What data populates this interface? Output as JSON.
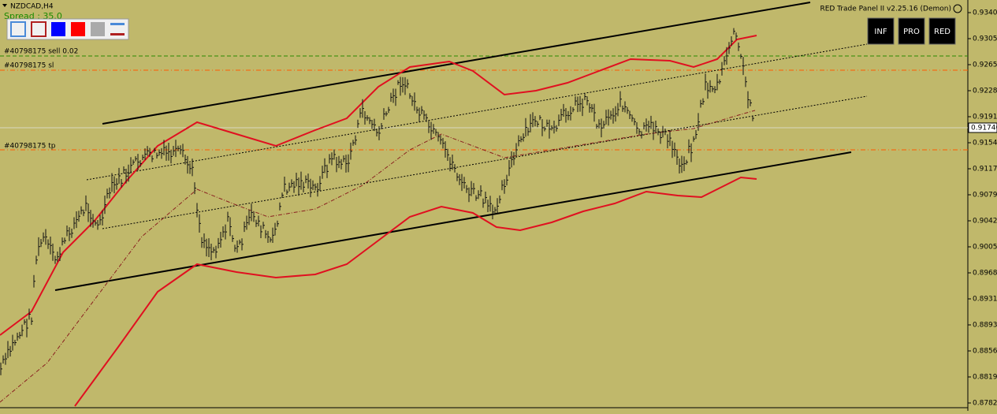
{
  "header": {
    "symbol": "NZDCAD,H4",
    "spread": "Spread : 35.0",
    "panel_title": "RED Trade Panel II v2.25.16 (Demon)"
  },
  "buttons": [
    "INF",
    "PRO",
    "RED"
  ],
  "order_lines": {
    "sell": "#40798175 sell 0.02",
    "sl": "#40798175 sl",
    "tp": "#40798175 tp"
  },
  "price_axis": {
    "labels": [
      "0.93400",
      "0.93050",
      "0.92650",
      "0.92280",
      "0.91910",
      "0.91540",
      "0.91170",
      "0.90790",
      "0.90420",
      "0.90050",
      "0.89680",
      "0.89310",
      "0.88930",
      "0.88560",
      "0.88190",
      "0.87820"
    ],
    "current": "0.91740"
  }
}
